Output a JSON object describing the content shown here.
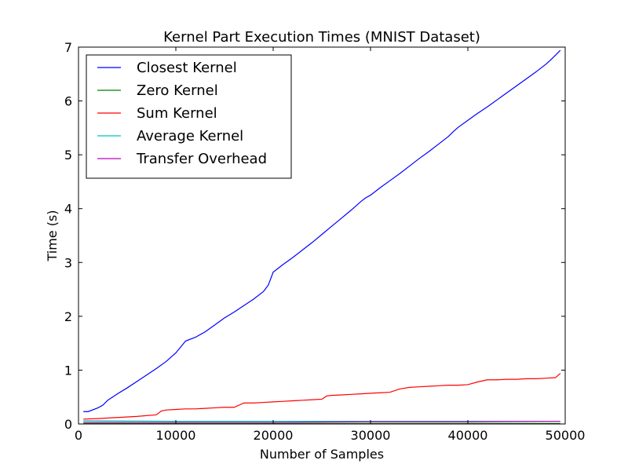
{
  "chart_data": {
    "type": "line",
    "title": "Kernel Part Execution Times (MNIST Dataset)",
    "xlabel": "Number of Samples",
    "ylabel": "Time (s)",
    "xlim": [
      0,
      50000
    ],
    "ylim": [
      0,
      7
    ],
    "xticks": [
      0,
      10000,
      20000,
      30000,
      40000,
      50000
    ],
    "yticks": [
      0,
      1,
      2,
      3,
      4,
      5,
      6,
      7
    ],
    "grid": false,
    "legend_position": "top-left",
    "series": [
      {
        "name": "Closest Kernel",
        "color": "#0000ff",
        "x": [
          500,
          1000,
          2000,
          2500,
          3000,
          4000,
          5000,
          6000,
          7000,
          8000,
          9000,
          9500,
          10000,
          11000,
          12000,
          13000,
          14000,
          15000,
          16000,
          17000,
          18000,
          19000,
          19500,
          20000,
          21000,
          22000,
          23000,
          24000,
          25000,
          26000,
          27000,
          28000,
          29000,
          29500,
          30000,
          31000,
          32000,
          33000,
          34000,
          35000,
          36000,
          37000,
          38000,
          38500,
          39000,
          40000,
          41000,
          42000,
          43000,
          44000,
          45000,
          46000,
          47000,
          48000,
          48500,
          49000,
          49500
        ],
        "values": [
          0.23,
          0.23,
          0.3,
          0.35,
          0.44,
          0.56,
          0.67,
          0.79,
          0.91,
          1.03,
          1.16,
          1.24,
          1.32,
          1.54,
          1.61,
          1.71,
          1.84,
          1.97,
          2.08,
          2.2,
          2.32,
          2.46,
          2.58,
          2.82,
          2.96,
          3.09,
          3.23,
          3.37,
          3.52,
          3.67,
          3.82,
          3.97,
          4.13,
          4.2,
          4.25,
          4.39,
          4.52,
          4.65,
          4.79,
          4.93,
          5.06,
          5.2,
          5.34,
          5.43,
          5.51,
          5.64,
          5.77,
          5.89,
          6.02,
          6.15,
          6.28,
          6.41,
          6.54,
          6.68,
          6.76,
          6.85,
          6.94
        ]
      },
      {
        "name": "Zero Kernel",
        "color": "#008000",
        "x": [
          500,
          10000,
          20000,
          30000,
          40000,
          49500
        ],
        "values": [
          0.01,
          0.01,
          0.01,
          0.01,
          0.01,
          0.01
        ]
      },
      {
        "name": "Sum Kernel",
        "color": "#ff0000",
        "x": [
          500,
          2000,
          4000,
          6000,
          8000,
          8500,
          9000,
          10000,
          11000,
          12000,
          13000,
          14000,
          15000,
          16000,
          17000,
          18000,
          19000,
          20000,
          21000,
          22000,
          23000,
          24000,
          25000,
          25500,
          26000,
          27000,
          28000,
          29000,
          30000,
          31000,
          32000,
          33000,
          34000,
          35000,
          36000,
          37000,
          38000,
          39000,
          40000,
          41000,
          42000,
          43000,
          44000,
          45000,
          46000,
          47000,
          48000,
          49000,
          49500
        ],
        "values": [
          0.09,
          0.1,
          0.12,
          0.14,
          0.17,
          0.24,
          0.26,
          0.27,
          0.28,
          0.28,
          0.29,
          0.3,
          0.31,
          0.31,
          0.39,
          0.39,
          0.4,
          0.41,
          0.42,
          0.43,
          0.44,
          0.45,
          0.46,
          0.52,
          0.53,
          0.54,
          0.55,
          0.56,
          0.57,
          0.58,
          0.59,
          0.65,
          0.68,
          0.69,
          0.7,
          0.71,
          0.72,
          0.72,
          0.73,
          0.78,
          0.82,
          0.82,
          0.83,
          0.83,
          0.84,
          0.84,
          0.85,
          0.86,
          0.94
        ]
      },
      {
        "name": "Average Kernel",
        "color": "#00bfbf",
        "x": [
          500,
          10000,
          20000,
          30000,
          40000,
          49500
        ],
        "values": [
          0.06,
          0.05,
          0.05,
          0.05,
          0.05,
          0.05
        ]
      },
      {
        "name": "Transfer Overhead",
        "color": "#bf00bf",
        "x": [
          500,
          10000,
          20000,
          30000,
          40000,
          49500
        ],
        "values": [
          0.03,
          0.03,
          0.03,
          0.04,
          0.04,
          0.05
        ]
      }
    ]
  }
}
